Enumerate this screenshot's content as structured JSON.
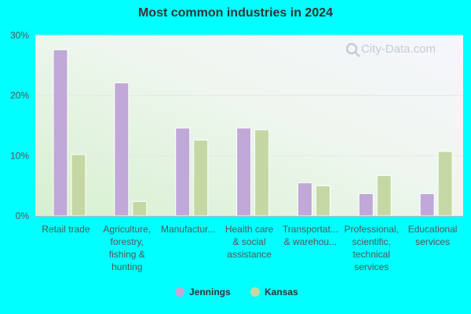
{
  "chart_data": {
    "type": "bar",
    "title": "Most common industries in 2024",
    "xlabel": "",
    "ylabel": "",
    "ylim": [
      0,
      30
    ],
    "y_ticks": [
      "0%",
      "10%",
      "20%",
      "30%"
    ],
    "categories": [
      [
        "Retail trade"
      ],
      [
        "Agriculture,",
        "forestry,",
        "fishing &",
        "hunting"
      ],
      [
        "Manufactur..."
      ],
      [
        "Health care",
        "& social",
        "assistance"
      ],
      [
        "Transportat...",
        "& warehou..."
      ],
      [
        "Professional,",
        "scientific,",
        "technical",
        "services"
      ],
      [
        "Educational",
        "services"
      ]
    ],
    "series": [
      {
        "name": "Jennings",
        "color": "#c0a8d8",
        "values": [
          27.6,
          22.1,
          14.6,
          14.6,
          5.5,
          3.7,
          3.7
        ]
      },
      {
        "name": "Kansas",
        "color": "#c5d8a4",
        "values": [
          10.2,
          2.4,
          12.6,
          14.3,
          5.0,
          6.7,
          10.7
        ]
      }
    ],
    "grid": true,
    "legend_position": "bottom"
  },
  "watermark": "City-Data.com"
}
